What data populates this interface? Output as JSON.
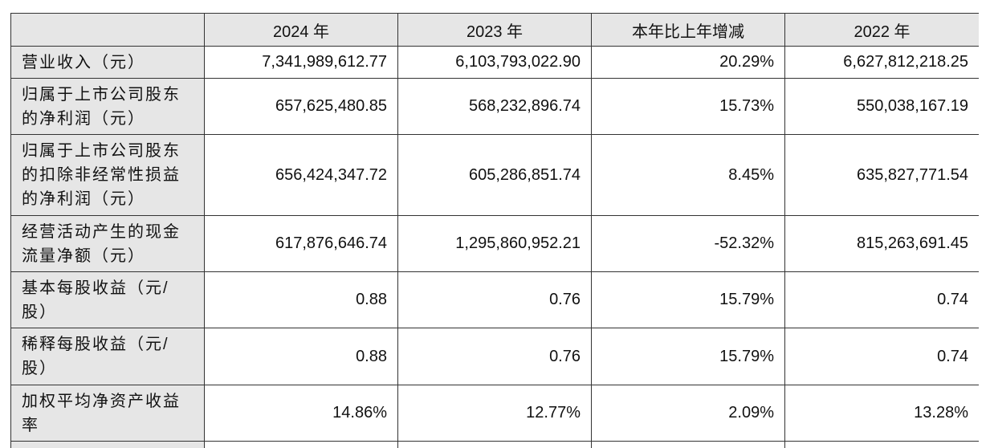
{
  "header": {
    "corner": "",
    "col_2024": "2024 年",
    "col_2023": "2023 年",
    "col_change": "本年比上年增减",
    "col_2022": "2022 年"
  },
  "rows": [
    {
      "label": "营业收入（元）",
      "v2024": "7,341,989,612.77",
      "v2023": "6,103,793,022.90",
      "change": "20.29%",
      "v2022": "6,627,812,218.25"
    },
    {
      "label": "归属于上市公司股东的净利润（元）",
      "v2024": "657,625,480.85",
      "v2023": "568,232,896.74",
      "change": "15.73%",
      "v2022": "550,038,167.19"
    },
    {
      "label": "归属于上市公司股东的扣除非经常性损益的净利润（元）",
      "v2024": "656,424,347.72",
      "v2023": "605,286,851.74",
      "change": "8.45%",
      "v2022": "635,827,771.54"
    },
    {
      "label": "经营活动产生的现金流量净额（元）",
      "v2024": "617,876,646.74",
      "v2023": "1,295,860,952.21",
      "change": "-52.32%",
      "v2022": "815,263,691.45"
    },
    {
      "label": "基本每股收益（元/股）",
      "v2024": "0.88",
      "v2023": "0.76",
      "change": "15.79%",
      "v2022": "0.74"
    },
    {
      "label": "稀释每股收益（元/股）",
      "v2024": "0.88",
      "v2023": "0.76",
      "change": "15.79%",
      "v2022": "0.74"
    },
    {
      "label": "加权平均净资产收益率",
      "v2024": "14.86%",
      "v2023": "12.77%",
      "change": "2.09%",
      "v2022": "13.28%"
    },
    {
      "label": "",
      "v2024": "",
      "v2023": "",
      "change": "",
      "v2022": ""
    }
  ]
}
